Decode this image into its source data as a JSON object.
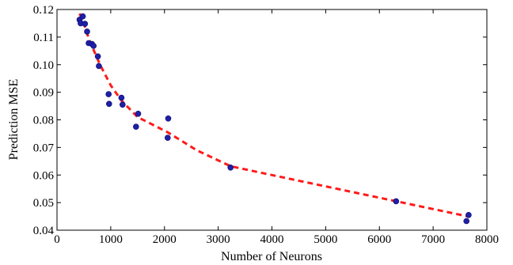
{
  "chart_data": {
    "type": "scatter",
    "title": "",
    "xlabel": "Number of Neurons",
    "ylabel": "Prediction MSE",
    "xlim": [
      0,
      8000
    ],
    "ylim": [
      0.04,
      0.12
    ],
    "x_ticks": [
      0,
      1000,
      2000,
      3000,
      4000,
      5000,
      6000,
      7000,
      8000
    ],
    "y_ticks": [
      0.04,
      0.05,
      0.06,
      0.07,
      0.08,
      0.09,
      0.1,
      0.11,
      0.12
    ],
    "x_tick_labels": [
      "0",
      "1000",
      "2000",
      "3000",
      "4000",
      "5000",
      "6000",
      "7000",
      "8000"
    ],
    "y_tick_labels": [
      "0.04",
      "0.05",
      "0.06",
      "0.07",
      "0.08",
      "0.09",
      "0.10",
      "0.11",
      "0.12"
    ],
    "grid": false,
    "series": [
      {
        "kind": "scatter",
        "color": "#1f1fa8",
        "points": [
          [
            420,
            0.1163
          ],
          [
            440,
            0.115
          ],
          [
            480,
            0.1175
          ],
          [
            520,
            0.1148
          ],
          [
            560,
            0.112
          ],
          [
            590,
            0.1078
          ],
          [
            650,
            0.1075
          ],
          [
            680,
            0.1068
          ],
          [
            760,
            0.103
          ],
          [
            780,
            0.0995
          ],
          [
            960,
            0.0893
          ],
          [
            970,
            0.0858
          ],
          [
            1200,
            0.088
          ],
          [
            1220,
            0.0855
          ],
          [
            1470,
            0.0775
          ],
          [
            1510,
            0.0822
          ],
          [
            2060,
            0.0735
          ],
          [
            2070,
            0.0805
          ],
          [
            3230,
            0.0627
          ],
          [
            6310,
            0.0505
          ],
          [
            7620,
            0.0433
          ],
          [
            7660,
            0.0455
          ]
        ]
      },
      {
        "kind": "line",
        "style": "dashed",
        "color": "#ff1a1a",
        "points": [
          [
            420,
            0.1185
          ],
          [
            500,
            0.115
          ],
          [
            600,
            0.109
          ],
          [
            800,
            0.1
          ],
          [
            1000,
            0.0925
          ],
          [
            1200,
            0.087
          ],
          [
            1500,
            0.081
          ],
          [
            2060,
            0.0755
          ],
          [
            2600,
            0.069
          ],
          [
            3230,
            0.0632
          ],
          [
            4000,
            0.06
          ],
          [
            6310,
            0.0505
          ],
          [
            7650,
            0.045
          ]
        ]
      }
    ]
  }
}
